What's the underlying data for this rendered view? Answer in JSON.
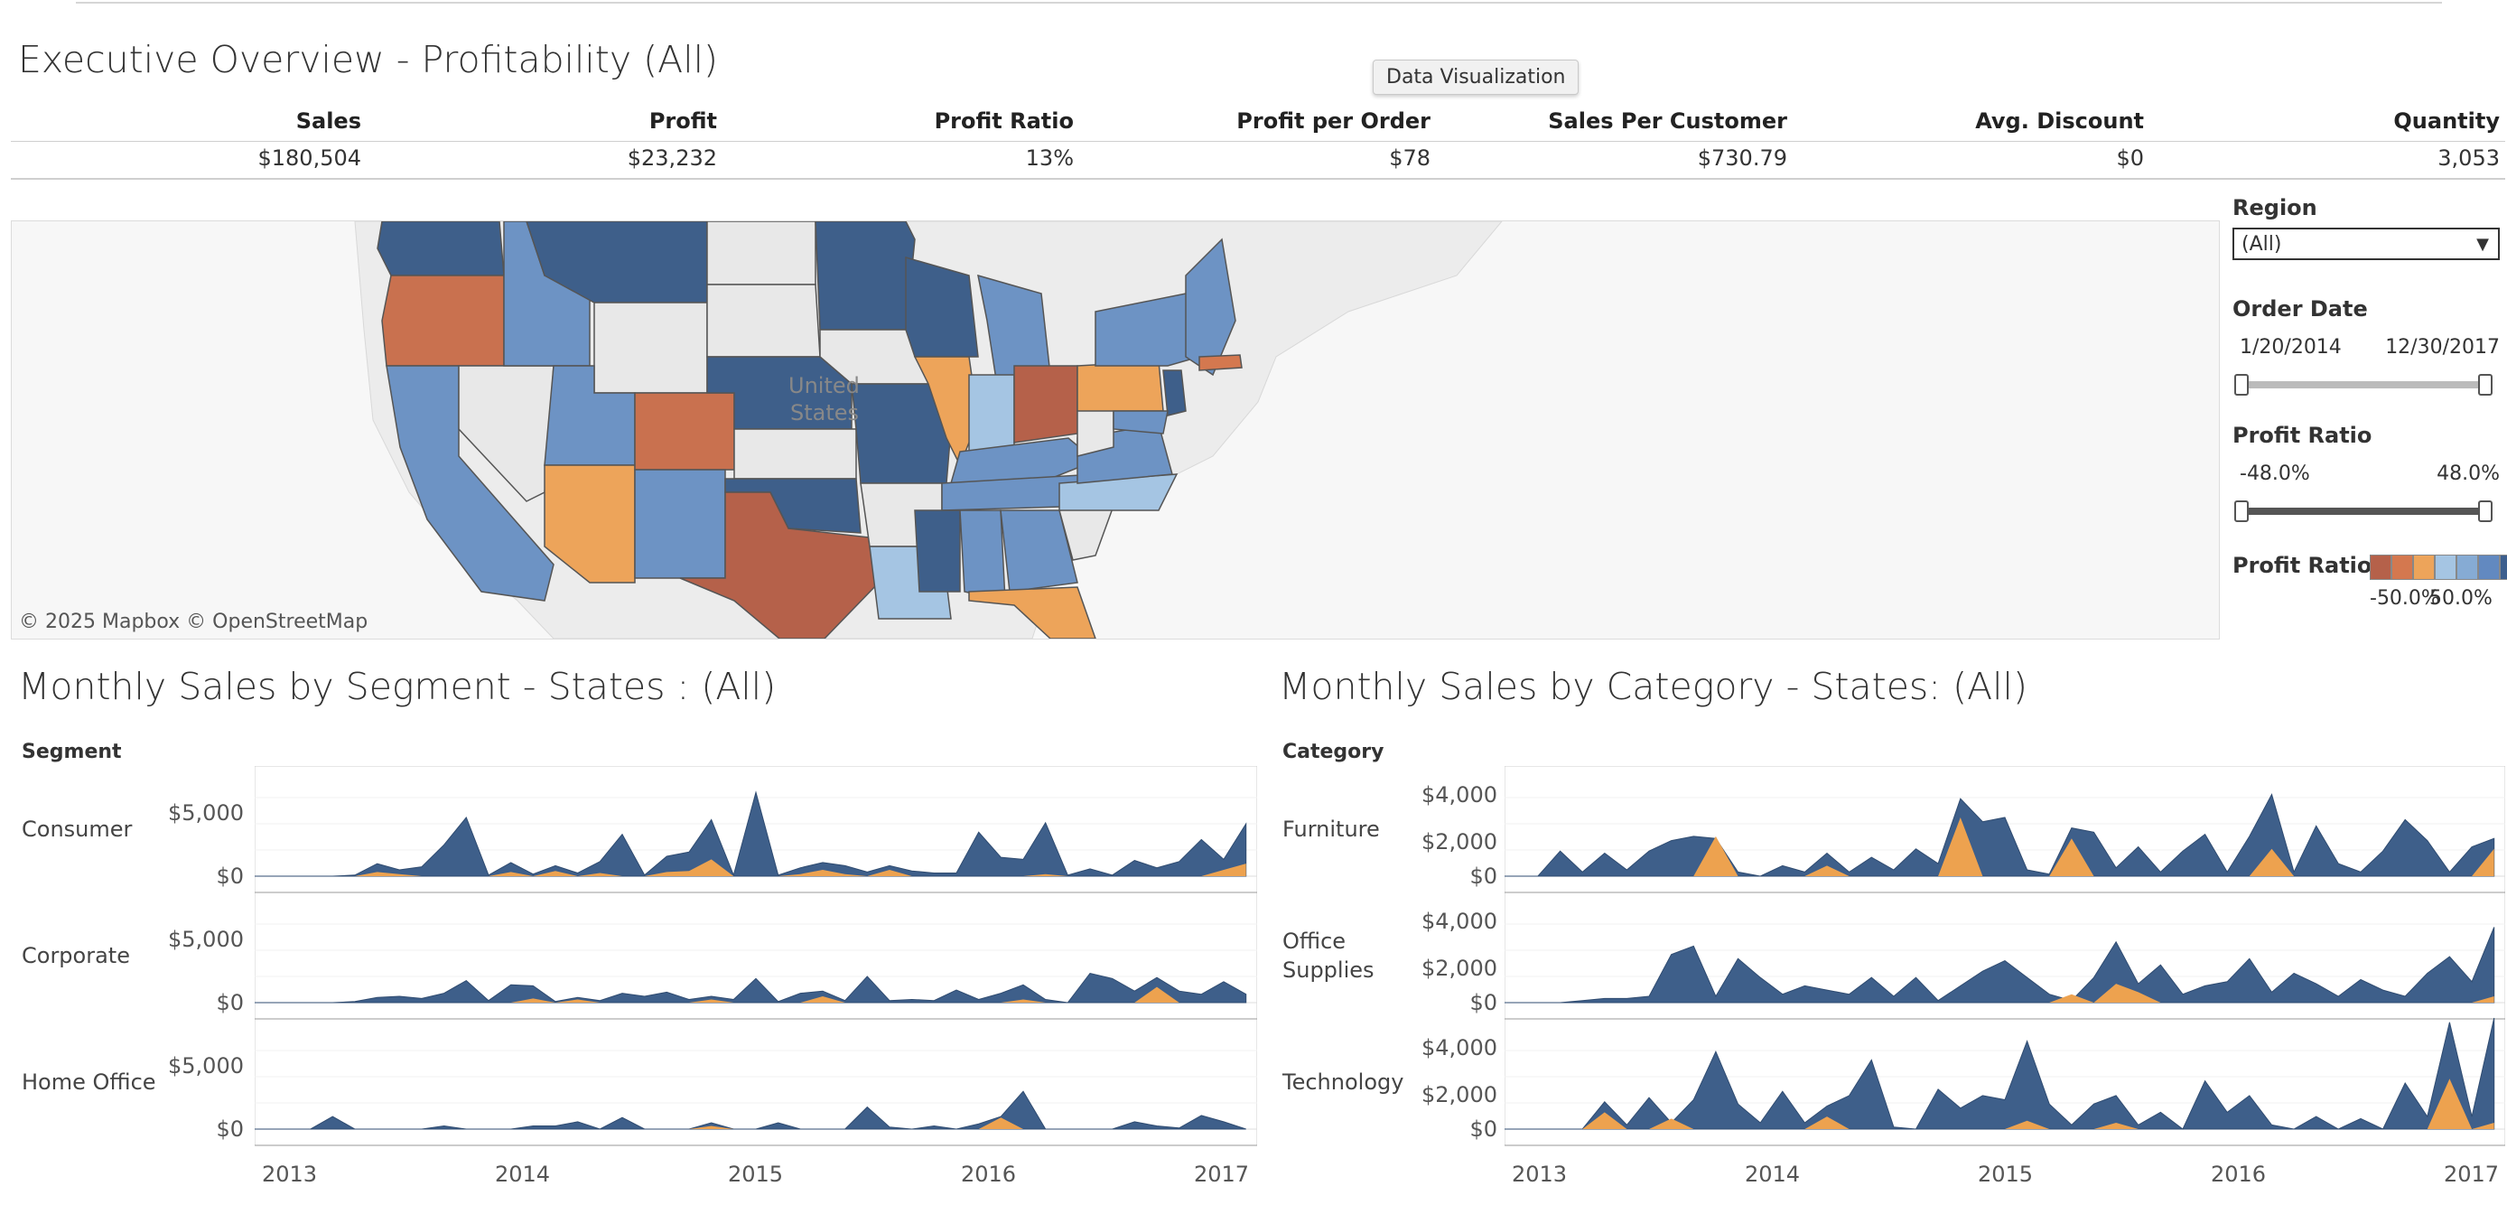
{
  "dashboard": {
    "title": "Executive Overview - Profitability (All)",
    "tooltip": "Data Visualization"
  },
  "kpis": [
    {
      "label": "Sales",
      "value": "$180,504"
    },
    {
      "label": "Profit",
      "value": "$23,232"
    },
    {
      "label": "Profit Ratio",
      "value": "13%"
    },
    {
      "label": "Profit per Order",
      "value": "$78"
    },
    {
      "label": "Sales Per Customer",
      "value": "$730.79"
    },
    {
      "label": "Avg. Discount",
      "value": "$0"
    },
    {
      "label": "Quantity",
      "value": "3,053"
    }
  ],
  "map": {
    "country_label_line1": "United",
    "country_label_line2": "States",
    "attribution": "© 2025 Mapbox  © OpenStreetMap"
  },
  "filters": {
    "region": {
      "label": "Region",
      "value": "(All)"
    },
    "order_date": {
      "label": "Order Date",
      "start": "1/20/2014",
      "end": "12/30/2017"
    },
    "profit_ratio": {
      "label": "Profit Ratio",
      "min": "-48.0%",
      "max": "48.0%"
    },
    "legend": {
      "label": "Profit Ratio",
      "min": "-50.0%",
      "max": "50.0%",
      "colors": [
        "#b5614a",
        "#d4784f",
        "#eda45a",
        "#a5c5e3",
        "#86abd4",
        "#6289c0",
        "#3d5f8e"
      ]
    }
  },
  "colors": {
    "positive": "#3e5f8a",
    "negative": "#eda24f",
    "neutral_state": "#e8e8e8",
    "background_land": "#ececec"
  },
  "segment_chart": {
    "title": "Monthly Sales by Segment - States : (All)",
    "header": "Segment",
    "rows": [
      {
        "label": "Consumer",
        "ticks": [
          "$5,000",
          "$0"
        ]
      },
      {
        "label": "Corporate",
        "ticks": [
          "$5,000",
          "$0"
        ]
      },
      {
        "label": "Home Office",
        "ticks": [
          "$5,000",
          "$0"
        ]
      }
    ],
    "years": [
      "2013",
      "2014",
      "2015",
      "2016",
      "2017"
    ]
  },
  "category_chart": {
    "title": "Monthly Sales by Category - States: (All)",
    "header": "Category",
    "rows": [
      {
        "label": "Furniture",
        "ticks": [
          "$4,000",
          "$2,000",
          "$0"
        ]
      },
      {
        "label": "Office Supplies",
        "label_line1": "Office",
        "label_line2": "Supplies",
        "ticks": [
          "$4,000",
          "$2,000",
          "$0"
        ]
      },
      {
        "label": "Technology",
        "ticks": [
          "$4,000",
          "$2,000",
          "$0"
        ]
      }
    ],
    "years": [
      "2013",
      "2014",
      "2015",
      "2016",
      "2017"
    ]
  },
  "chart_data": [
    {
      "type": "area",
      "title": "Monthly Sales by Segment - States : (All)",
      "x_start": "2013-01",
      "x_end": "2017-01",
      "facet": "Segment",
      "ylim": [
        0,
        10000
      ],
      "series": [
        {
          "name": "Consumer",
          "sales": [
            0,
            0,
            0,
            0,
            100,
            1200,
            600,
            900,
            3000,
            5600,
            100,
            1300,
            200,
            1000,
            300,
            1400,
            4000,
            100,
            1900,
            2300,
            5400,
            100,
            8000,
            100,
            800,
            1300,
            1000,
            400,
            1000,
            500,
            300,
            300,
            4200,
            1800,
            1600,
            5100,
            100,
            700,
            100,
            1500,
            800,
            1400,
            3500,
            1600,
            5000
          ],
          "negative": [
            0,
            0,
            0,
            0,
            0,
            400,
            200,
            0,
            0,
            0,
            0,
            400,
            0,
            500,
            0,
            300,
            0,
            0,
            400,
            500,
            1600,
            0,
            0,
            0,
            200,
            600,
            200,
            0,
            600,
            0,
            0,
            0,
            0,
            0,
            0,
            200,
            0,
            0,
            0,
            0,
            0,
            0,
            0,
            600,
            1200
          ]
        },
        {
          "name": "Corporate",
          "sales": [
            0,
            0,
            0,
            0,
            100,
            500,
            600,
            400,
            900,
            2100,
            200,
            1700,
            1600,
            100,
            500,
            200,
            900,
            600,
            1000,
            300,
            600,
            300,
            2300,
            100,
            900,
            1100,
            200,
            2500,
            200,
            300,
            200,
            1200,
            300,
            900,
            1700,
            300,
            0,
            2800,
            2300,
            1100,
            2400,
            1100,
            800,
            2000,
            800
          ],
          "negative": [
            0,
            0,
            0,
            0,
            0,
            0,
            0,
            0,
            0,
            0,
            0,
            0,
            400,
            0,
            300,
            0,
            0,
            0,
            0,
            0,
            300,
            0,
            0,
            0,
            0,
            600,
            0,
            0,
            0,
            0,
            0,
            0,
            0,
            0,
            300,
            0,
            0,
            0,
            0,
            0,
            1500,
            0,
            0,
            0,
            0
          ]
        },
        {
          "name": "Home Office",
          "sales": [
            0,
            0,
            0,
            1200,
            0,
            0,
            0,
            0,
            300,
            0,
            0,
            0,
            300,
            300,
            700,
            0,
            1100,
            0,
            0,
            0,
            600,
            0,
            0,
            600,
            0,
            0,
            0,
            2100,
            200,
            0,
            300,
            0,
            500,
            1200,
            3600,
            0,
            0,
            0,
            0,
            700,
            300,
            100,
            1300,
            700,
            0
          ],
          "negative": [
            0,
            0,
            0,
            0,
            0,
            0,
            0,
            0,
            0,
            0,
            0,
            0,
            0,
            0,
            0,
            0,
            0,
            0,
            0,
            0,
            300,
            0,
            0,
            0,
            0,
            0,
            0,
            0,
            0,
            0,
            0,
            0,
            0,
            1100,
            0,
            0,
            0,
            0,
            0,
            0,
            0,
            0,
            0,
            0,
            0
          ]
        }
      ]
    },
    {
      "type": "area",
      "title": "Monthly Sales by Category - States: (All)",
      "x_start": "2013-01",
      "x_end": "2017-01",
      "facet": "Category",
      "ylim": [
        0,
        5000
      ],
      "series": [
        {
          "name": "Furniture",
          "sales": [
            0,
            0,
            1200,
            200,
            1100,
            300,
            1200,
            1700,
            1900,
            1800,
            200,
            0,
            500,
            200,
            1100,
            200,
            900,
            300,
            1300,
            600,
            3700,
            2600,
            2800,
            300,
            100,
            2300,
            2100,
            400,
            1400,
            200,
            1200,
            2000,
            200,
            1900,
            3900,
            200,
            2400,
            600,
            200,
            1200,
            2700,
            1700,
            200,
            1400,
            1800
          ],
          "negative": [
            0,
            0,
            0,
            0,
            0,
            0,
            0,
            0,
            0,
            1900,
            0,
            0,
            0,
            0,
            500,
            0,
            0,
            0,
            0,
            0,
            2800,
            0,
            0,
            0,
            0,
            1800,
            0,
            0,
            0,
            0,
            0,
            0,
            0,
            0,
            1300,
            0,
            0,
            0,
            0,
            0,
            0,
            0,
            0,
            0,
            1300
          ]
        },
        {
          "name": "Office Supplies",
          "sales": [
            0,
            0,
            0,
            100,
            200,
            200,
            300,
            2300,
            2700,
            300,
            2100,
            1200,
            400,
            800,
            600,
            400,
            1200,
            300,
            1200,
            100,
            800,
            1500,
            2000,
            1200,
            400,
            100,
            1200,
            2900,
            900,
            1800,
            400,
            800,
            1000,
            2100,
            500,
            1400,
            900,
            300,
            1100,
            600,
            300,
            1400,
            2200,
            1000,
            3600
          ],
          "negative": [
            0,
            0,
            0,
            0,
            0,
            0,
            0,
            0,
            0,
            0,
            0,
            0,
            0,
            0,
            0,
            0,
            0,
            0,
            0,
            0,
            0,
            0,
            0,
            0,
            0,
            400,
            0,
            900,
            500,
            0,
            0,
            0,
            0,
            0,
            0,
            0,
            0,
            0,
            0,
            0,
            0,
            0,
            0,
            0,
            300
          ]
        },
        {
          "name": "Technology",
          "sales": [
            0,
            0,
            0,
            0,
            1300,
            200,
            1500,
            300,
            1400,
            3700,
            1200,
            300,
            1800,
            300,
            1100,
            1600,
            3300,
            100,
            0,
            1900,
            1000,
            1600,
            1400,
            4200,
            1200,
            200,
            1200,
            1600,
            200,
            800,
            0,
            2300,
            800,
            1600,
            200,
            0,
            600,
            0,
            500,
            0,
            2200,
            600,
            5100,
            600,
            5300
          ],
          "negative": [
            0,
            0,
            0,
            0,
            800,
            0,
            0,
            500,
            0,
            0,
            0,
            0,
            0,
            0,
            600,
            0,
            0,
            0,
            0,
            0,
            0,
            0,
            0,
            400,
            0,
            0,
            0,
            300,
            0,
            0,
            0,
            0,
            0,
            0,
            0,
            0,
            0,
            0,
            0,
            0,
            0,
            0,
            2400,
            0,
            300
          ]
        }
      ]
    }
  ]
}
